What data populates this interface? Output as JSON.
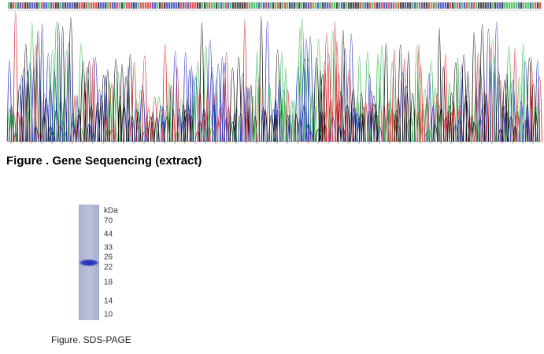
{
  "figures": [
    {
      "caption": "Figure . Gene Sequencing (extract)"
    },
    {
      "caption": "Figure. SDS-PAGE",
      "unit": "kDa",
      "markers": [
        "70",
        "44",
        "33",
        "26",
        "22",
        "18",
        "14",
        "10"
      ]
    }
  ]
}
